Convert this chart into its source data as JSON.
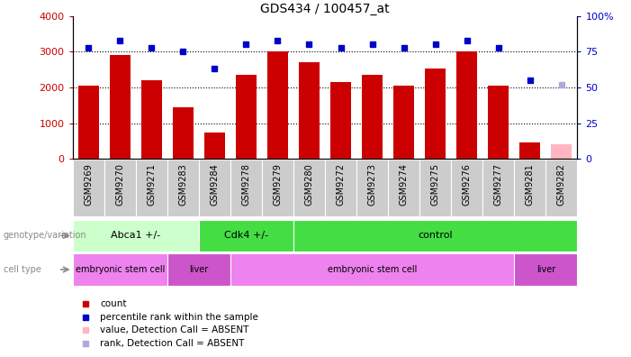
{
  "title": "GDS434 / 100457_at",
  "samples": [
    "GSM9269",
    "GSM9270",
    "GSM9271",
    "GSM9283",
    "GSM9284",
    "GSM9278",
    "GSM9279",
    "GSM9280",
    "GSM9272",
    "GSM9273",
    "GSM9274",
    "GSM9275",
    "GSM9276",
    "GSM9277",
    "GSM9281",
    "GSM9282"
  ],
  "counts": [
    2050,
    2900,
    2200,
    1450,
    750,
    2350,
    3000,
    2700,
    2150,
    2350,
    2060,
    2520,
    3020,
    2060,
    450,
    0
  ],
  "absent_count": [
    0,
    0,
    0,
    0,
    0,
    0,
    0,
    0,
    0,
    0,
    0,
    0,
    0,
    0,
    0,
    400
  ],
  "ranks": [
    78,
    83,
    78,
    75,
    63,
    80,
    83,
    80,
    78,
    80,
    78,
    80,
    83,
    78,
    55,
    0
  ],
  "absent_rank": [
    0,
    0,
    0,
    0,
    0,
    0,
    0,
    0,
    0,
    0,
    0,
    0,
    0,
    0,
    0,
    52
  ],
  "is_absent": [
    false,
    false,
    false,
    false,
    false,
    false,
    false,
    false,
    false,
    false,
    false,
    false,
    false,
    false,
    false,
    true
  ],
  "genotype_groups": [
    {
      "label": "Abca1 +/-",
      "start": 0,
      "end": 4,
      "color": "#ccffcc"
    },
    {
      "label": "Cdk4 +/-",
      "start": 4,
      "end": 7,
      "color": "#44dd44"
    },
    {
      "label": "control",
      "start": 7,
      "end": 16,
      "color": "#44dd44"
    }
  ],
  "celltype_groups": [
    {
      "label": "embryonic stem cell",
      "start": 0,
      "end": 3,
      "color": "#ee82ee"
    },
    {
      "label": "liver",
      "start": 3,
      "end": 5,
      "color": "#cc66cc"
    },
    {
      "label": "embryonic stem cell",
      "start": 5,
      "end": 14,
      "color": "#ee82ee"
    },
    {
      "label": "liver",
      "start": 14,
      "end": 16,
      "color": "#cc66cc"
    }
  ],
  "bar_color": "#cc0000",
  "absent_bar_color": "#ffb6c1",
  "rank_color": "#0000cc",
  "absent_rank_color": "#aaaadd",
  "ylim_left": [
    0,
    4000
  ],
  "ylim_right": [
    0,
    100
  ],
  "yticks_left": [
    0,
    1000,
    2000,
    3000,
    4000
  ],
  "yticks_right": [
    0,
    25,
    50,
    75,
    100
  ],
  "background_color": "#ffffff"
}
